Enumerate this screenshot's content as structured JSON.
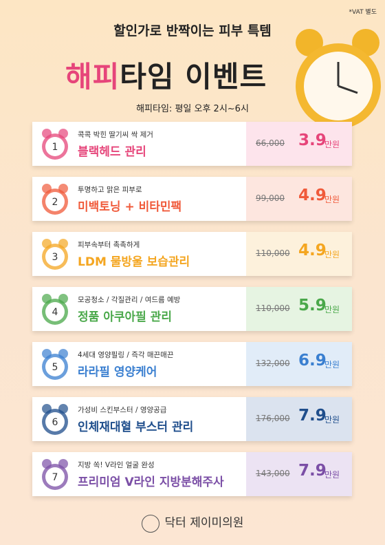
{
  "header": {
    "vat_note": "*VAT 별도",
    "tagline": "할인가로 반짝이는 피부 특템",
    "title_accent": "해피",
    "title_rest": "타임 이벤트",
    "hours": "해피타임: 평일 오후 2시~6시"
  },
  "items": [
    {
      "number": "1",
      "subtitle": "콕콕 박힌 딸기씨 싹 제거",
      "name": "블랙헤드 관리",
      "original_price": "66,000",
      "sale_price": "3.9",
      "unit": "만원"
    },
    {
      "number": "2",
      "subtitle": "투명하고 맑은 피부로",
      "name": "미백토닝 + 비타민팩",
      "original_price": "99,000",
      "sale_price": "4.9",
      "unit": "만원"
    },
    {
      "number": "3",
      "subtitle": "피부속부터 촉촉하게",
      "name": "LDM 물방울 보습관리",
      "original_price": "110,000",
      "sale_price": "4.9",
      "unit": "만원"
    },
    {
      "number": "4",
      "subtitle": "모공청소 / 각질관리 / 여드름 예방",
      "name": "정품 아쿠아필 관리",
      "original_price": "110,000",
      "sale_price": "5.9",
      "unit": "만원"
    },
    {
      "number": "5",
      "subtitle": "4세대 영양필링 / 즉각 매끈매끈",
      "name": "라라필 영양케어",
      "original_price": "132,000",
      "sale_price": "6.9",
      "unit": "만원"
    },
    {
      "number": "6",
      "subtitle": "가성비 스킨부스터 / 영양공급",
      "name": "인체재대혈 부스터 관리",
      "original_price": "176,000",
      "sale_price": "7.9",
      "unit": "만원"
    },
    {
      "number": "7",
      "subtitle": "지방 쏙! V라인 얼굴 완성",
      "name": "프리미엄 V라인 지방분해주사",
      "original_price": "143,000",
      "sale_price": "7.9",
      "unit": "만원"
    }
  ],
  "footer": {
    "clinic": "닥터 제이미의원"
  }
}
